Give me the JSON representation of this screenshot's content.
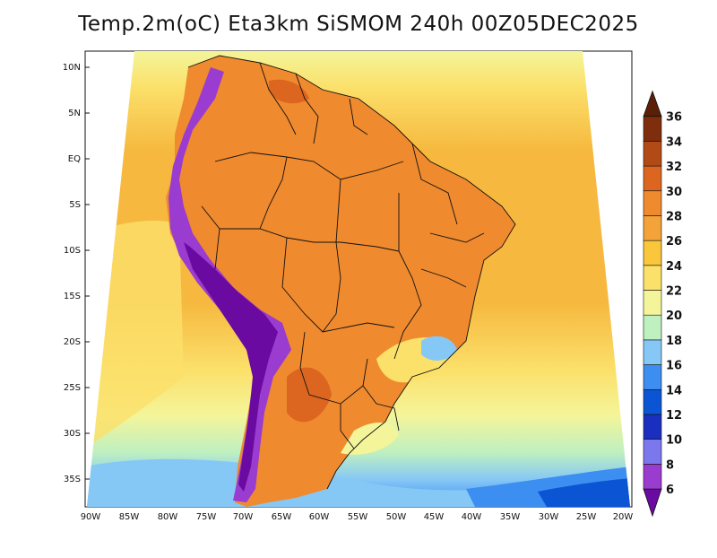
{
  "map": {
    "title": "Temp.2m(oC) Eta3km SiSMOM 240h 00Z05DEC2025",
    "variable": "2 m air temperature",
    "units": "oC",
    "model": "Eta3km SiSMOM",
    "forecast_hour": "240h",
    "init_time": "00Z05DEC2025",
    "lat_ticks": [
      "10N",
      "5N",
      "EQ",
      "5S",
      "10S",
      "15S",
      "20S",
      "25S",
      "30S",
      "35S"
    ],
    "lon_ticks": [
      "90W",
      "85W",
      "80W",
      "75W",
      "70W",
      "65W",
      "60W",
      "55W",
      "50W",
      "45W",
      "40W",
      "35W",
      "30W",
      "25W",
      "20W"
    ]
  },
  "colorbar": {
    "levels": [
      "6",
      "8",
      "10",
      "12",
      "14",
      "16",
      "18",
      "20",
      "22",
      "24",
      "26",
      "28",
      "30",
      "32",
      "34",
      "36"
    ],
    "colors": [
      "#6a0aa0",
      "#9a3ccf",
      "#7b78ee",
      "#1a2fbf",
      "#0b55d5",
      "#3c8ef0",
      "#86c8f5",
      "#bff0c0",
      "#f4f59a",
      "#fbe06a",
      "#f9c63c",
      "#f3a33a",
      "#ef8a2f",
      "#dc6620",
      "#b24a16",
      "#7e2e0c",
      "#5a1f06"
    ]
  },
  "palette": {
    "ocean_warm": "#f6b83e",
    "ocean_mid": "#fbe06a",
    "ocean_cool": "#f4f59a",
    "ocean_cold": "#86c8f5",
    "land_hot": "#ef8a2f",
    "andes": "#6a0aa0",
    "border": "#111111"
  }
}
